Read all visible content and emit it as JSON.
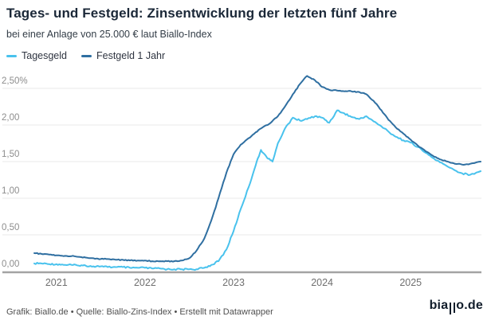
{
  "header": {
    "title": "Tages- und Festgeld: Zinsentwicklung der letzten fünf Jahre",
    "subtitle": "bei einer Anlage von 25.000 € laut Biallo-Index"
  },
  "footer": {
    "attribution": "Grafik: Biallo.de • Quelle: Biallo-Zins-Index • Erstellt mit Datawrapper",
    "logo_prefix": "bia",
    "logo_suffix": "o.de"
  },
  "chart_data": {
    "type": "line",
    "title": "Tages- und Festgeld: Zinsentwicklung der letzten fünf Jahre",
    "subtitle": "bei einer Anlage von 25.000 € laut Biallo-Index",
    "unit": "%",
    "grid": true,
    "legend_position": "top-left",
    "x_domain": [
      2020.75,
      2025.79
    ],
    "y_domain": [
      0,
      2.75
    ],
    "x_ticks": [
      {
        "label": "2021",
        "t": 2021
      },
      {
        "label": "2022",
        "t": 2022
      },
      {
        "label": "2023",
        "t": 2023
      },
      {
        "label": "2024",
        "t": 2024
      },
      {
        "label": "2025",
        "t": 2025
      }
    ],
    "y_ticks": [
      {
        "label": "2,50%",
        "v": 2.5
      },
      {
        "label": "2,00",
        "v": 2.0
      },
      {
        "label": "1,50",
        "v": 1.5
      },
      {
        "label": "1,00",
        "v": 1.0
      },
      {
        "label": "0,50",
        "v": 0.5
      },
      {
        "label": "0,00",
        "v": 0.0
      }
    ],
    "series": [
      {
        "name": "Tagesgeld",
        "color": "#49c2ed",
        "jitter": 1.0,
        "points": [
          [
            2020.75,
            0.11
          ],
          [
            2020.83,
            0.11
          ],
          [
            2020.92,
            0.1
          ],
          [
            2021.0,
            0.1
          ],
          [
            2021.08,
            0.09
          ],
          [
            2021.17,
            0.09
          ],
          [
            2021.25,
            0.08
          ],
          [
            2021.33,
            0.08
          ],
          [
            2021.42,
            0.07
          ],
          [
            2021.5,
            0.07
          ],
          [
            2021.58,
            0.06
          ],
          [
            2021.67,
            0.06
          ],
          [
            2021.75,
            0.06
          ],
          [
            2021.83,
            0.05
          ],
          [
            2021.92,
            0.05
          ],
          [
            2022.0,
            0.05
          ],
          [
            2022.08,
            0.04
          ],
          [
            2022.17,
            0.04
          ],
          [
            2022.25,
            0.03
          ],
          [
            2022.33,
            0.03
          ],
          [
            2022.42,
            0.03
          ],
          [
            2022.5,
            0.03
          ],
          [
            2022.58,
            0.03
          ],
          [
            2022.67,
            0.05
          ],
          [
            2022.75,
            0.09
          ],
          [
            2022.83,
            0.14
          ],
          [
            2022.92,
            0.3
          ],
          [
            2023.0,
            0.55
          ],
          [
            2023.08,
            0.85
          ],
          [
            2023.17,
            1.15
          ],
          [
            2023.25,
            1.45
          ],
          [
            2023.31,
            1.66
          ],
          [
            2023.38,
            1.55
          ],
          [
            2023.44,
            1.5
          ],
          [
            2023.5,
            1.75
          ],
          [
            2023.58,
            1.95
          ],
          [
            2023.67,
            2.1
          ],
          [
            2023.75,
            2.06
          ],
          [
            2023.83,
            2.08
          ],
          [
            2023.92,
            2.12
          ],
          [
            2024.0,
            2.1
          ],
          [
            2024.08,
            2.03
          ],
          [
            2024.17,
            2.2
          ],
          [
            2024.25,
            2.16
          ],
          [
            2024.33,
            2.11
          ],
          [
            2024.42,
            2.08
          ],
          [
            2024.5,
            2.12
          ],
          [
            2024.58,
            2.05
          ],
          [
            2024.67,
            1.98
          ],
          [
            2024.75,
            1.91
          ],
          [
            2024.83,
            1.84
          ],
          [
            2024.92,
            1.79
          ],
          [
            2025.0,
            1.76
          ],
          [
            2025.08,
            1.7
          ],
          [
            2025.17,
            1.62
          ],
          [
            2025.25,
            1.55
          ],
          [
            2025.33,
            1.49
          ],
          [
            2025.42,
            1.43
          ],
          [
            2025.5,
            1.38
          ],
          [
            2025.58,
            1.34
          ],
          [
            2025.67,
            1.32
          ],
          [
            2025.79,
            1.37
          ]
        ]
      },
      {
        "name": "Festgeld 1 Jahr",
        "color": "#2f6fa1",
        "jitter": 0.6,
        "points": [
          [
            2020.75,
            0.25
          ],
          [
            2020.83,
            0.24
          ],
          [
            2020.92,
            0.23
          ],
          [
            2021.0,
            0.22
          ],
          [
            2021.08,
            0.21
          ],
          [
            2021.17,
            0.21
          ],
          [
            2021.25,
            0.2
          ],
          [
            2021.33,
            0.19
          ],
          [
            2021.42,
            0.18
          ],
          [
            2021.5,
            0.17
          ],
          [
            2021.58,
            0.17
          ],
          [
            2021.67,
            0.16
          ],
          [
            2021.75,
            0.16
          ],
          [
            2021.83,
            0.15
          ],
          [
            2021.92,
            0.15
          ],
          [
            2022.0,
            0.15
          ],
          [
            2022.08,
            0.14
          ],
          [
            2022.17,
            0.14
          ],
          [
            2022.25,
            0.14
          ],
          [
            2022.33,
            0.14
          ],
          [
            2022.42,
            0.15
          ],
          [
            2022.5,
            0.18
          ],
          [
            2022.58,
            0.28
          ],
          [
            2022.67,
            0.45
          ],
          [
            2022.75,
            0.7
          ],
          [
            2022.83,
            1.0
          ],
          [
            2022.92,
            1.35
          ],
          [
            2023.0,
            1.6
          ],
          [
            2023.08,
            1.73
          ],
          [
            2023.17,
            1.82
          ],
          [
            2023.25,
            1.9
          ],
          [
            2023.33,
            1.97
          ],
          [
            2023.42,
            2.03
          ],
          [
            2023.5,
            2.12
          ],
          [
            2023.58,
            2.25
          ],
          [
            2023.67,
            2.42
          ],
          [
            2023.75,
            2.56
          ],
          [
            2023.83,
            2.67
          ],
          [
            2023.92,
            2.61
          ],
          [
            2024.0,
            2.52
          ],
          [
            2024.08,
            2.48
          ],
          [
            2024.17,
            2.47
          ],
          [
            2024.25,
            2.46
          ],
          [
            2024.33,
            2.46
          ],
          [
            2024.42,
            2.45
          ],
          [
            2024.5,
            2.42
          ],
          [
            2024.58,
            2.33
          ],
          [
            2024.67,
            2.2
          ],
          [
            2024.75,
            2.07
          ],
          [
            2024.83,
            1.97
          ],
          [
            2024.92,
            1.88
          ],
          [
            2025.0,
            1.8
          ],
          [
            2025.08,
            1.72
          ],
          [
            2025.17,
            1.64
          ],
          [
            2025.25,
            1.58
          ],
          [
            2025.33,
            1.53
          ],
          [
            2025.42,
            1.5
          ],
          [
            2025.5,
            1.47
          ],
          [
            2025.58,
            1.46
          ],
          [
            2025.67,
            1.47
          ],
          [
            2025.79,
            1.5
          ]
        ]
      }
    ]
  }
}
